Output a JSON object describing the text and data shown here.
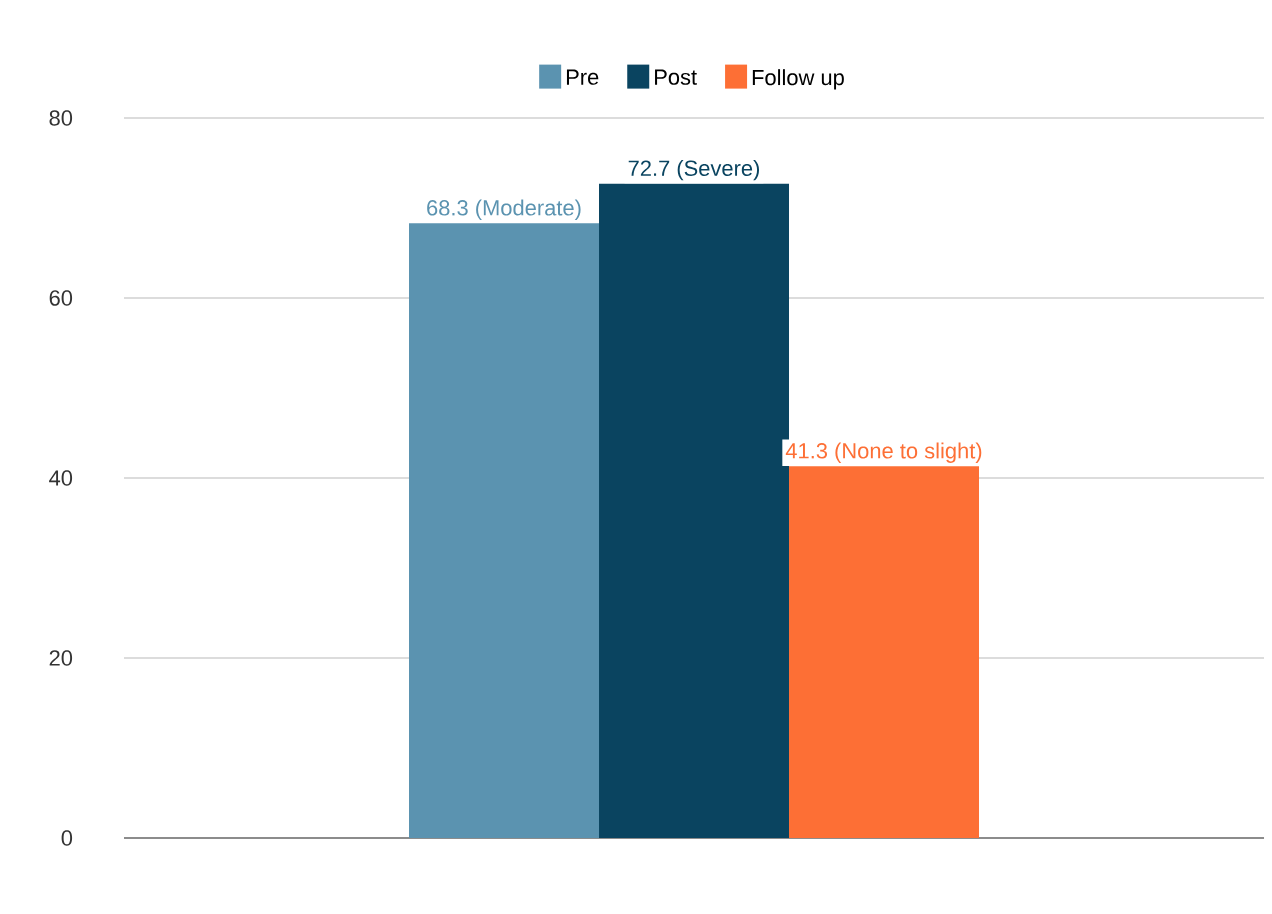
{
  "chart_data": {
    "type": "bar",
    "categories": [
      null
    ],
    "series": [
      {
        "name": "Pre",
        "color": "#5b93b0",
        "values": [
          68.3
        ],
        "value_labels": [
          "68.3 (Moderate)"
        ]
      },
      {
        "name": "Post",
        "color": "#0a4460",
        "values": [
          72.7
        ],
        "value_labels": [
          "72.7 (Severe)"
        ]
      },
      {
        "name": "Follow up",
        "color": "#fd6f35",
        "values": [
          41.3
        ],
        "value_labels": [
          "41.3 (None to slight)"
        ]
      }
    ],
    "ylim": [
      0,
      80
    ],
    "yticks": [
      0,
      20,
      40,
      60,
      80
    ],
    "grid": "y",
    "legend": "top"
  }
}
